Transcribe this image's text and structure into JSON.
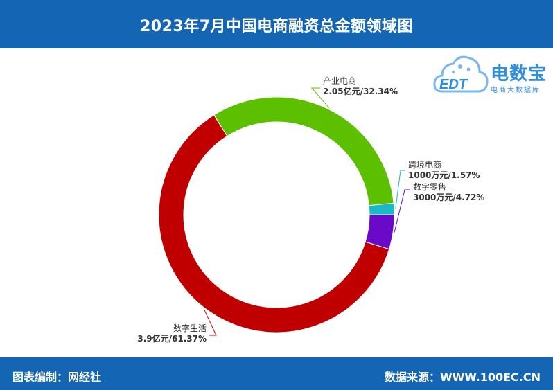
{
  "header": {
    "title": "2023年7月中国电商融资总金额领域图"
  },
  "footer": {
    "left": "图表编制：网经社",
    "right": "数据来源：WWW.100EC.CN"
  },
  "logo": {
    "name": "电数宝",
    "sub": "电商大数据库",
    "mark": "EDT"
  },
  "colors": {
    "header_bg": "#1565b5"
  },
  "chart_data": {
    "type": "pie",
    "variant": "donut",
    "title": "2023年7月中国电商融资总金额领域图",
    "unit": "元",
    "slices": [
      {
        "name": "数字零售",
        "value_text": "3000万元",
        "pct_text": "4.72%",
        "pct": 4.72,
        "color": "#6a0ac8"
      },
      {
        "name": "数字生活",
        "value_text": "3.9亿元",
        "pct_text": "61.37%",
        "pct": 61.37,
        "color": "#c00000"
      },
      {
        "name": "产业电商",
        "value_text": "2.05亿元",
        "pct_text": "32.34%",
        "pct": 32.34,
        "color": "#5cc000"
      },
      {
        "name": "跨境电商",
        "value_text": "1000万元",
        "pct_text": "1.57%",
        "pct": 1.57,
        "color": "#1ab8c6"
      }
    ]
  }
}
